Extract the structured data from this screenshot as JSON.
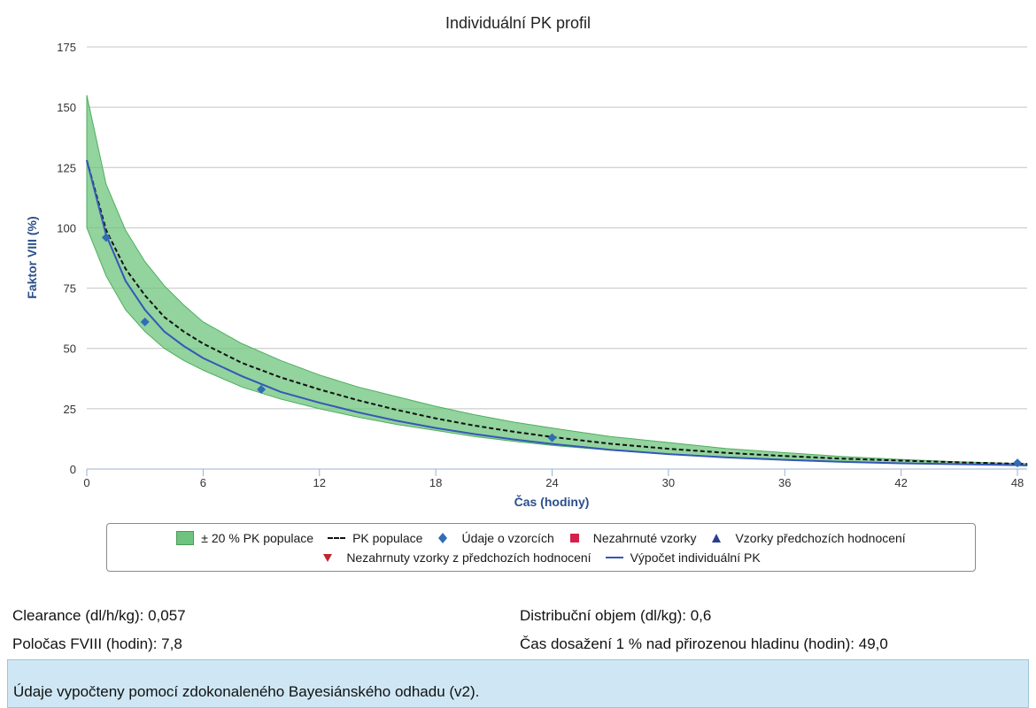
{
  "chart_data": {
    "type": "line",
    "title": "Individuální PK profil",
    "xlabel": "Čas (hodiny)",
    "ylabel": "Faktor VIII (%)",
    "xlim": [
      0,
      48.5
    ],
    "ylim": [
      0,
      175
    ],
    "x_ticks": [
      0,
      6,
      12,
      18,
      24,
      30,
      36,
      42,
      48
    ],
    "y_ticks": [
      0,
      25,
      50,
      75,
      100,
      125,
      150,
      175
    ],
    "grid": "horizontal",
    "legend_position": "bottom",
    "band": {
      "name": "± 20 % PK populace",
      "color": "#6ec47e",
      "x": [
        0,
        1,
        2,
        3,
        4,
        5,
        6,
        8,
        10,
        12,
        14,
        16,
        18,
        20,
        22,
        24,
        27,
        30,
        33,
        36,
        39,
        42,
        45,
        48,
        48.5
      ],
      "upper": [
        155,
        118,
        99,
        86,
        76,
        68,
        61,
        52,
        45,
        39,
        34,
        30,
        26,
        22.5,
        19.5,
        17,
        13.5,
        11,
        8.5,
        6.8,
        5.2,
        4,
        3,
        2.3,
        2.2
      ],
      "lower": [
        100,
        80,
        66,
        57,
        50,
        45,
        41,
        34,
        29,
        25,
        21.5,
        18.5,
        16,
        13.5,
        11.5,
        9.8,
        7.8,
        6.2,
        5,
        4,
        3.2,
        2.5,
        2,
        1.5,
        1.4
      ]
    },
    "series": [
      {
        "name": "PK populace",
        "style": "dashed",
        "color": "#111111",
        "x": [
          0,
          1,
          2,
          3,
          4,
          5,
          6,
          8,
          10,
          12,
          14,
          16,
          18,
          20,
          22,
          24,
          27,
          30,
          33,
          36,
          39,
          42,
          45,
          48,
          48.5
        ],
        "y": [
          128,
          99,
          83,
          72,
          63,
          57,
          52,
          44,
          38,
          33,
          28.5,
          24.5,
          21,
          18,
          15.5,
          13.3,
          10.5,
          8.4,
          6.7,
          5.4,
          4.3,
          3.5,
          2.8,
          2.2,
          2.1
        ]
      },
      {
        "name": "Výpočet individuální PK",
        "style": "solid",
        "color": "#3557b7",
        "x": [
          0,
          1,
          2,
          3,
          4,
          5,
          6,
          8,
          10,
          12,
          14,
          16,
          18,
          20,
          22,
          24,
          27,
          30,
          33,
          36,
          39,
          42,
          45,
          48,
          48.5
        ],
        "y": [
          128,
          97,
          78,
          66,
          57,
          51,
          46,
          38.5,
          32,
          27.5,
          23.5,
          20,
          17,
          14.5,
          12.3,
          10.4,
          8,
          6.2,
          4.8,
          3.8,
          3,
          2.4,
          2,
          1.6,
          1.5
        ]
      }
    ],
    "points": {
      "name": "Údaje o vzorcích",
      "color": "#2f6db5",
      "x": [
        1,
        3,
        9,
        24,
        48
      ],
      "y": [
        96,
        61,
        33,
        13,
        2.5
      ]
    },
    "legend": [
      {
        "label": "± 20 % PK populace",
        "symbol": "band",
        "color": "#6ec47e"
      },
      {
        "label": "PK populace",
        "symbol": "dash",
        "color": "#111111"
      },
      {
        "label": "Údaje o vzorcích",
        "symbol": "diamond",
        "color": "#2f6db5"
      },
      {
        "label": "Nezahrnuté vzorky",
        "symbol": "square",
        "color": "#d4204a"
      },
      {
        "label": "Vzorky předchozích hodnocení",
        "symbol": "triangle-up",
        "color": "#2a3f8f"
      },
      {
        "label": "Nezahrnuty vzorky z předchozích hodnocení",
        "symbol": "triangle-down",
        "color": "#c0262d"
      },
      {
        "label": "Výpočet individuální PK",
        "symbol": "line",
        "color": "#3557b7"
      }
    ]
  },
  "stats": {
    "clearance": "Clearance (dl/h/kg): 0,057",
    "half_life": "Poločas FVIII (hodin): 7,8",
    "volume": "Distribuční objem (dl/kg): 0,6",
    "time_to_1pct": "Čas dosažení 1 % nad přirozenou hladinu (hodin): 49,0"
  },
  "note": "Údaje vypočteny pomocí zdokonaleného Bayesiánského odhadu (v2)."
}
